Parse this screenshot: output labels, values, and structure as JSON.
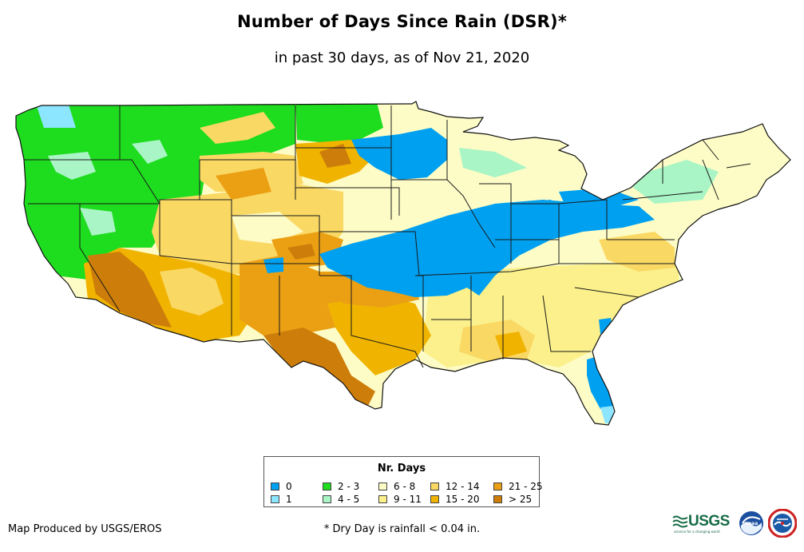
{
  "title": "Number of Days Since Rain (DSR)*",
  "subtitle": "in past 30 days, as of Nov 21, 2020",
  "legend": {
    "title": "Nr. Days",
    "items": [
      {
        "label": "0",
        "color": "#00a0f0"
      },
      {
        "label": "1",
        "color": "#8ce6ff"
      },
      {
        "label": "2 - 3",
        "color": "#1edc1e"
      },
      {
        "label": "4 - 5",
        "color": "#a9f5c5"
      },
      {
        "label": "6 - 8",
        "color": "#fdfcc6"
      },
      {
        "label": "9 - 11",
        "color": "#fbf08b"
      },
      {
        "label": "12 - 14",
        "color": "#fad864"
      },
      {
        "label": "15 - 20",
        "color": "#f0b400"
      },
      {
        "label": "21 - 25",
        "color": "#eba014"
      },
      {
        "label": "> 25",
        "color": "#cd7d0a"
      }
    ]
  },
  "credit": "Map Produced by USGS/EROS",
  "footnote": "* Dry Day is rainfall < 0.04 in.",
  "logos": {
    "usgs_text": "USGS",
    "usgs_tagline": "science for a changing world",
    "noaa_text": "noaa"
  },
  "colors": {
    "state_border": "#1a1a1a",
    "background": "#ffffff"
  }
}
